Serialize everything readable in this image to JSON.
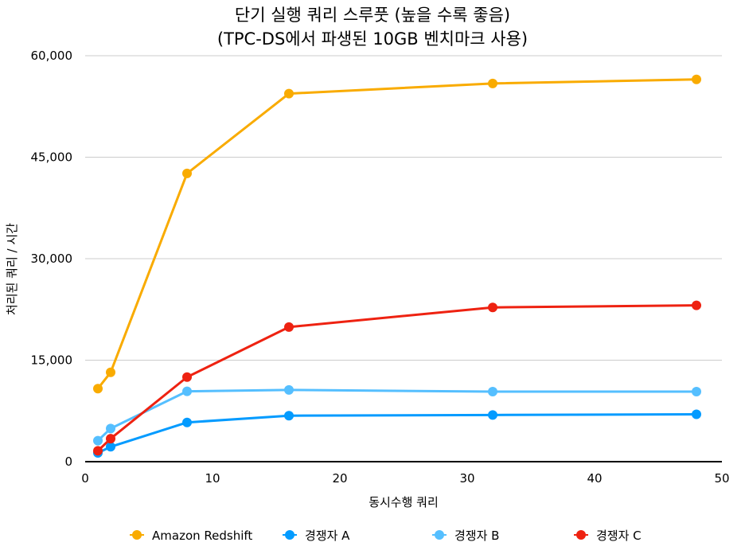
{
  "chart_data": {
    "type": "line",
    "title": "단기 실행 쿼리 스루풋 (높을 수록 좋음)",
    "subtitle": "(TPC-DS에서 파생된 10GB 벤치마크 사용)",
    "xlabel": "동시수행 쿼리",
    "ylabel": "처리된 쿼리 / 시간",
    "xlim": [
      0,
      50
    ],
    "ylim": [
      0,
      60000
    ],
    "xticks": [
      0,
      10,
      20,
      30,
      40,
      50
    ],
    "xtick_labels": [
      "0",
      "10",
      "20",
      "30",
      "40",
      "50"
    ],
    "yticks": [
      0,
      15000,
      30000,
      45000,
      60000
    ],
    "ytick_labels": [
      "0",
      "15,000",
      "30,000",
      "45,000",
      "60,000"
    ],
    "grid": "horizontal",
    "legend_position": "bottom",
    "x": [
      1,
      2,
      8,
      16,
      32,
      48
    ],
    "series": [
      {
        "name": "Amazon Redshift",
        "color": "#F9AB00",
        "values": [
          10800,
          13200,
          42600,
          54400,
          55900,
          56500
        ]
      },
      {
        "name": "경쟁자 A",
        "color": "#039BFF",
        "values": [
          1300,
          2200,
          5800,
          6800,
          6900,
          7000
        ]
      },
      {
        "name": "경쟁자 B",
        "color": "#55BFFF",
        "values": [
          3100,
          4900,
          10400,
          10600,
          10350,
          10350
        ]
      },
      {
        "name": "경쟁자 C",
        "color": "#EE2211",
        "values": [
          1600,
          3400,
          12500,
          19900,
          22800,
          23100
        ]
      }
    ]
  }
}
